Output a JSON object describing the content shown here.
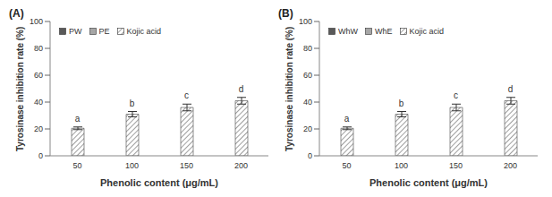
{
  "chart_data": [
    {
      "type": "bar",
      "title": "(A)",
      "x_label": "Phenolic content (μg/mL)",
      "y_label": "Tyrosinase inhibition rate (%)",
      "categories": [
        50,
        100,
        150,
        200
      ],
      "series": [
        {
          "name": "PW",
          "color": "#595959",
          "values": [
            null,
            null,
            null,
            null
          ]
        },
        {
          "name": "PE",
          "color": "#a6a6a6",
          "values": [
            null,
            null,
            null,
            null
          ]
        },
        {
          "name": "Kojic acid",
          "color": "#7f7f7f",
          "line_style": "hatched",
          "values": [
            20.5,
            31,
            36,
            41
          ],
          "errors": [
            1,
            2,
            2.5,
            2.5
          ]
        }
      ],
      "annotations": [
        "a",
        "b",
        "c",
        "d"
      ],
      "ylim": [
        0,
        100
      ],
      "yticks": [
        0,
        20,
        40,
        60,
        80,
        100
      ],
      "grid": false,
      "legend": "upper left"
    },
    {
      "type": "bar",
      "title": "(B)",
      "x_label": "Phenolic content (μg/mL)",
      "y_label": "Tyrosinase inhibition rate (%)",
      "categories": [
        50,
        100,
        150,
        200
      ],
      "series": [
        {
          "name": "WhW",
          "color": "#595959",
          "values": [
            null,
            null,
            null,
            null
          ]
        },
        {
          "name": "WhE",
          "color": "#a6a6a6",
          "values": [
            null,
            null,
            null,
            null
          ]
        },
        {
          "name": "Kojic acid",
          "color": "#7f7f7f",
          "line_style": "hatched",
          "values": [
            20.5,
            31,
            36,
            41
          ],
          "errors": [
            1,
            2,
            2.5,
            2.5
          ]
        }
      ],
      "annotations": [
        "a",
        "b",
        "c",
        "d"
      ],
      "ylim": [
        0,
        100
      ],
      "yticks": [
        0,
        20,
        40,
        60,
        80,
        100
      ],
      "grid": false,
      "legend": "upper left"
    }
  ]
}
